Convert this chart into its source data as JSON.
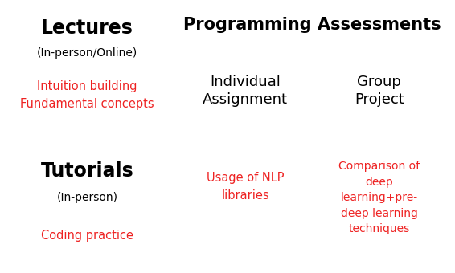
{
  "bg_color": "#ffffff",
  "panel_color": "#FFEE99",
  "inner_box_color": "#FFD700",
  "black": "#000000",
  "red": "#EE2222",
  "lectures_title": "Lectures",
  "lectures_subtitle": "(In-person/Online)",
  "lectures_body": "Intuition building\nFundamental concepts",
  "tutorials_title": "Tutorials",
  "tutorials_subtitle": "(In-person)",
  "tutorials_body": "Coding practice",
  "prog_title": "Programming Assessments",
  "indiv_title": "Individual\nAssignment",
  "indiv_body": "Usage of NLP\nlibraries",
  "group_title": "Group\nProject",
  "group_body": "Comparison of\ndeep\nlearning+pre-\ndeep learning\ntechniques",
  "fig_width": 5.66,
  "fig_height": 3.4,
  "dpi": 100
}
